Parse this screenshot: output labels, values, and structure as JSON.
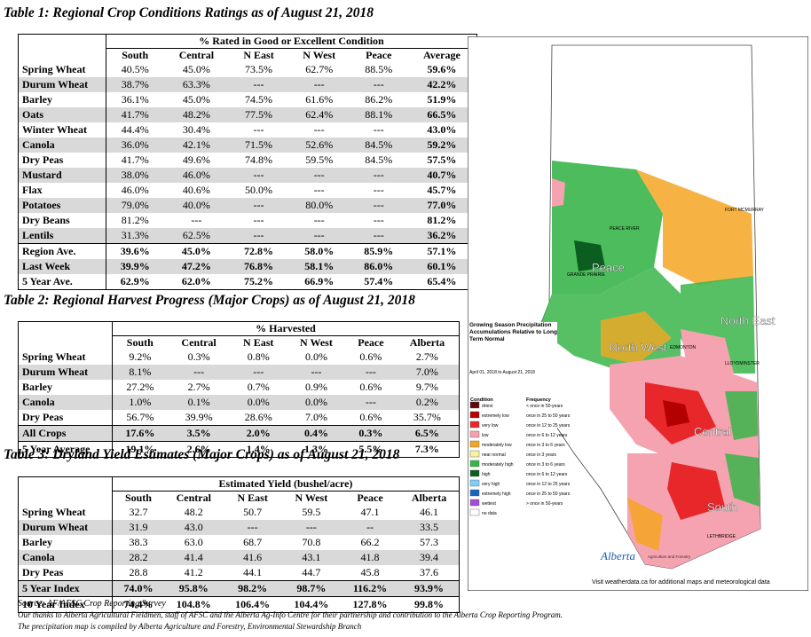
{
  "table1": {
    "title": "Table 1: Regional Crop Conditions Ratings as of August 21, 2018",
    "group_header": "% Rated in Good or Excellent Condition",
    "columns": [
      "South",
      "Central",
      "N East",
      "N West",
      "Peace",
      "Average"
    ],
    "rows": [
      {
        "label": "Spring Wheat",
        "values": [
          "40.5%",
          "45.0%",
          "73.5%",
          "62.7%",
          "88.5%",
          "59.6%"
        ],
        "shade": false
      },
      {
        "label": "Durum Wheat",
        "values": [
          "38.7%",
          "63.3%",
          "---",
          "---",
          "---",
          "42.2%"
        ],
        "shade": true
      },
      {
        "label": "Barley",
        "values": [
          "36.1%",
          "45.0%",
          "74.5%",
          "61.6%",
          "86.2%",
          "51.9%"
        ],
        "shade": false
      },
      {
        "label": "Oats",
        "values": [
          "41.7%",
          "48.2%",
          "77.5%",
          "62.4%",
          "88.1%",
          "66.5%"
        ],
        "shade": true
      },
      {
        "label": "Winter Wheat",
        "values": [
          "44.4%",
          "30.4%",
          "---",
          "---",
          "---",
          "43.0%"
        ],
        "shade": false
      },
      {
        "label": "Canola",
        "values": [
          "36.0%",
          "42.1%",
          "71.5%",
          "52.6%",
          "84.5%",
          "59.2%"
        ],
        "shade": true
      },
      {
        "label": "Dry Peas",
        "values": [
          "41.7%",
          "49.6%",
          "74.8%",
          "59.5%",
          "84.5%",
          "57.5%"
        ],
        "shade": false
      },
      {
        "label": "Mustard",
        "values": [
          "38.0%",
          "46.0%",
          "---",
          "---",
          "---",
          "40.7%"
        ],
        "shade": true
      },
      {
        "label": "Flax",
        "values": [
          "46.0%",
          "40.6%",
          "50.0%",
          "---",
          "---",
          "45.7%"
        ],
        "shade": false
      },
      {
        "label": "Potatoes",
        "values": [
          "79.0%",
          "40.0%",
          "---",
          "80.0%",
          "---",
          "77.0%"
        ],
        "shade": true
      },
      {
        "label": "Dry Beans",
        "values": [
          "81.2%",
          "---",
          "---",
          "---",
          "---",
          "81.2%"
        ],
        "shade": false
      },
      {
        "label": "Lentils",
        "values": [
          "31.3%",
          "62.5%",
          "---",
          "---",
          "---",
          "36.2%"
        ],
        "shade": true
      }
    ],
    "summary": [
      {
        "label": "Region Ave.",
        "values": [
          "39.6%",
          "45.0%",
          "72.8%",
          "58.0%",
          "85.9%",
          "57.1%"
        ],
        "shade": false
      },
      {
        "label": "Last Week",
        "values": [
          "39.9%",
          "47.2%",
          "76.8%",
          "58.1%",
          "86.0%",
          "60.1%"
        ],
        "shade": true
      },
      {
        "label": "5 Year Ave.",
        "values": [
          "62.9%",
          "62.0%",
          "75.2%",
          "66.9%",
          "57.4%",
          "65.4%"
        ],
        "shade": false
      }
    ]
  },
  "table2": {
    "title": "Table 2: Regional Harvest Progress (Major Crops) as of August 21, 2018",
    "group_header": "% Harvested",
    "columns": [
      "South",
      "Central",
      "N East",
      "N West",
      "Peace",
      "Alberta"
    ],
    "rows": [
      {
        "label": "Spring Wheat",
        "values": [
          "9.2%",
          "0.3%",
          "0.8%",
          "0.0%",
          "0.6%",
          "2.7%"
        ],
        "shade": false
      },
      {
        "label": "Durum Wheat",
        "values": [
          "8.1%",
          "---",
          "---",
          "---",
          "---",
          "7.0%"
        ],
        "shade": true
      },
      {
        "label": "Barley",
        "values": [
          "27.2%",
          "2.7%",
          "0.7%",
          "0.9%",
          "0.6%",
          "9.7%"
        ],
        "shade": false
      },
      {
        "label": "Canola",
        "values": [
          "1.0%",
          "0.1%",
          "0.0%",
          "0.0%",
          "---",
          "0.2%"
        ],
        "shade": true
      },
      {
        "label": "Dry Peas",
        "values": [
          "56.7%",
          "39.9%",
          "28.6%",
          "7.0%",
          "0.6%",
          "35.7%"
        ],
        "shade": false
      },
      {
        "label": "All Crops",
        "values": [
          "17.6%",
          "3.5%",
          "2.0%",
          "0.4%",
          "0.3%",
          "6.5%"
        ],
        "shade": true
      },
      {
        "label": "5 Year Average",
        "values": [
          "19.1%",
          "2.6%",
          "1.4%",
          "1.3%",
          "5.5%",
          "7.3%"
        ],
        "shade": false
      }
    ]
  },
  "table3": {
    "title": "Table 3: Dryland Yield Estimates (Major Crops) as of August 21, 2018",
    "group_header": "Estimated Yield (bushel/acre)",
    "columns": [
      "South",
      "Central",
      "N East",
      "N West",
      "Peace",
      "Alberta"
    ],
    "rows": [
      {
        "label": "Spring Wheat",
        "values": [
          "32.7",
          "48.2",
          "50.7",
          "59.5",
          "47.1",
          "46.1"
        ],
        "shade": false
      },
      {
        "label": "Durum Wheat",
        "values": [
          "31.9",
          "43.0",
          "---",
          "---",
          "--",
          "33.5"
        ],
        "shade": true
      },
      {
        "label": "Barley",
        "values": [
          "38.3",
          "63.0",
          "68.7",
          "70.8",
          "66.2",
          "57.3"
        ],
        "shade": false
      },
      {
        "label": "Canola",
        "values": [
          "28.2",
          "41.4",
          "41.6",
          "43.1",
          "41.8",
          "39.4"
        ],
        "shade": true
      },
      {
        "label": "Dry Peas",
        "values": [
          "28.8",
          "41.2",
          "44.1",
          "44.7",
          "45.8",
          "37.6"
        ],
        "shade": false
      },
      {
        "label": "5 Year  Index",
        "values": [
          "74.0%",
          "95.8%",
          "98.2%",
          "98.7%",
          "116.2%",
          "93.9%"
        ],
        "shade": true
      },
      {
        "label": "10 Year Index",
        "values": [
          "74.4%",
          "104.8%",
          "106.4%",
          "104.4%",
          "127.8%",
          "99.8%"
        ],
        "shade": false
      }
    ]
  },
  "footer": {
    "source": "Source: AF/AFSC Crop Reporting Survey",
    "thanks": "Our thanks to Alberta Agricultural Fieldmen, staff of AFSC and the Alberta Ag-Info Centre for their partnership and contribution to the Alberta Crop Reporting Program.",
    "compiled": "The precipitation map is compiled by Alberta Agriculture and Forestry, Environmental Stewardship Branch"
  },
  "map": {
    "legend_title": "Growing Season Precipitation Accumulations Relative to Long Term Normal",
    "date_range": "April 01, 2018 to August 21, 2018",
    "condition_header": "Condition",
    "frequency_header": "Frequency",
    "legend": [
      {
        "label": "driest",
        "freq": "< once in 50-years",
        "color": "#5c0a0a"
      },
      {
        "label": "extremely low",
        "freq": "once in 25 to 50 years",
        "color": "#b30000"
      },
      {
        "label": "very low",
        "freq": "once in 12 to 25 years",
        "color": "#e8272a"
      },
      {
        "label": "low",
        "freq": "once in 6 to 12 years",
        "color": "#f5a3b0"
      },
      {
        "label": "moderately low",
        "freq": "once in 3 to 6 years",
        "color": "#f4a623"
      },
      {
        "label": "near normal",
        "freq": "once in 3 years",
        "color": "#f7f3a0"
      },
      {
        "label": "moderately high",
        "freq": "once in 3 to 6 years",
        "color": "#39b54a"
      },
      {
        "label": "high",
        "freq": "once in 6 to 12 years",
        "color": "#0b5e1f"
      },
      {
        "label": "very high",
        "freq": "once in 12 to 25 years",
        "color": "#7ecff5"
      },
      {
        "label": "extremely high",
        "freq": "once in 25 to 50 years",
        "color": "#1565c0"
      },
      {
        "label": "wettest",
        "freq": "> once in 50-years",
        "color": "#a14bd6"
      },
      {
        "label": "no data",
        "freq": "",
        "color": "#ffffff"
      }
    ],
    "regions": [
      "Peace",
      "North West",
      "North East",
      "Central",
      "South"
    ],
    "cities": [
      "FORT MCMURRAY",
      "PEACE RIVER",
      "GRANDE PRAIRIE",
      "EDMONTON",
      "LLOYDMINSTER",
      "LETHBRIDGE"
    ],
    "brand": "Alberta",
    "brand_sub": "Agriculture and Forestry",
    "website": "Visit weatherdata.ca for additional maps and meteorological data"
  }
}
